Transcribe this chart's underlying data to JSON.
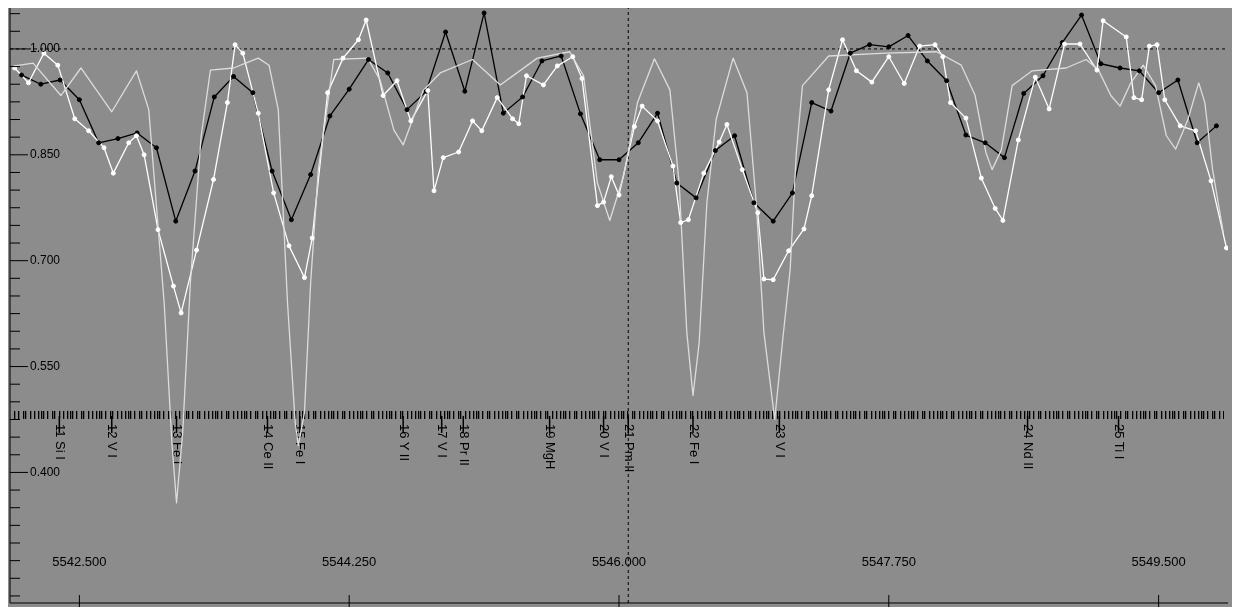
{
  "chart_data": {
    "type": "line",
    "xlim": [
      5542.05,
      5549.95
    ],
    "xticks": [
      {
        "value": 5542.5,
        "label": "5542.500"
      },
      {
        "value": 5544.25,
        "label": "5544.250"
      },
      {
        "value": 5546.0,
        "label": "5546.000"
      },
      {
        "value": 5547.75,
        "label": "5547.750"
      },
      {
        "value": 5549.5,
        "label": "5549.500"
      }
    ],
    "ylim": [
      0.215,
      1.058
    ],
    "yticks": [
      {
        "value": 0.225,
        "label": null
      },
      {
        "value": 0.25,
        "label": null
      },
      {
        "value": 0.275,
        "label": null
      },
      {
        "value": 0.3,
        "label": null
      },
      {
        "value": 0.325,
        "label": null
      },
      {
        "value": 0.35,
        "label": null
      },
      {
        "value": 0.375,
        "label": null
      },
      {
        "value": 0.4,
        "label": "0.400"
      },
      {
        "value": 0.425,
        "label": null
      },
      {
        "value": 0.45,
        "label": null
      },
      {
        "value": 0.475,
        "label": null
      },
      {
        "value": 0.5,
        "label": null
      },
      {
        "value": 0.525,
        "label": null
      },
      {
        "value": 0.55,
        "label": "0.550"
      },
      {
        "value": 0.575,
        "label": null
      },
      {
        "value": 0.6,
        "label": null
      },
      {
        "value": 0.625,
        "label": null
      },
      {
        "value": 0.65,
        "label": null
      },
      {
        "value": 0.675,
        "label": null
      },
      {
        "value": 0.7,
        "label": "0.700"
      },
      {
        "value": 0.725,
        "label": null
      },
      {
        "value": 0.75,
        "label": null
      },
      {
        "value": 0.775,
        "label": null
      },
      {
        "value": 0.8,
        "label": null
      },
      {
        "value": 0.825,
        "label": null
      },
      {
        "value": 0.85,
        "label": "0.850"
      },
      {
        "value": 0.875,
        "label": null
      },
      {
        "value": 0.9,
        "label": null
      },
      {
        "value": 0.925,
        "label": null
      },
      {
        "value": 0.95,
        "label": null
      },
      {
        "value": 0.975,
        "label": null
      },
      {
        "value": 1.0,
        "label": "1.000"
      },
      {
        "value": 1.025,
        "label": null
      },
      {
        "value": 1.05,
        "label": null
      }
    ],
    "marker": "circle",
    "series": [
      {
        "color": "#000000",
        "x": [
          5542.125,
          5542.25,
          5542.375,
          5542.5,
          5542.625,
          5542.75,
          5542.875,
          5543.0,
          5543.125,
          5543.25,
          5543.375,
          5543.5,
          5543.625,
          5543.75,
          5543.875,
          5544.0,
          5544.125,
          5544.25,
          5544.375,
          5544.5,
          5544.625,
          5544.75,
          5544.875,
          5545.0,
          5545.125,
          5545.25,
          5545.375,
          5545.5,
          5545.625,
          5545.75,
          5545.875,
          5546.0,
          5546.125,
          5546.25,
          5546.375,
          5546.5,
          5546.625,
          5546.75,
          5546.875,
          5547.0,
          5547.125,
          5547.25,
          5547.375,
          5547.5,
          5547.625,
          5547.75,
          5547.875,
          5548.0,
          5548.125,
          5548.25,
          5548.375,
          5548.5,
          5548.625,
          5548.75,
          5548.875,
          5549.0,
          5549.125,
          5549.25,
          5549.375,
          5549.5,
          5549.625,
          5549.75,
          5549.875
        ],
        "values": [
          0.963,
          0.95,
          0.956,
          0.928,
          0.867,
          0.873,
          0.881,
          0.86,
          0.756,
          0.827,
          0.932,
          0.961,
          0.938,
          0.827,
          0.758,
          0.822,
          0.905,
          0.943,
          0.985,
          0.966,
          0.914,
          0.94,
          1.024,
          0.94,
          1.051,
          0.909,
          0.932,
          0.983,
          0.99,
          0.908,
          0.843,
          0.843,
          0.867,
          0.909,
          0.81,
          0.789,
          0.856,
          0.877,
          0.782,
          0.756,
          0.796,
          0.924,
          0.912,
          0.994,
          1.006,
          1.003,
          1.019,
          0.983,
          0.955,
          0.878,
          0.867,
          0.846,
          0.937,
          0.962,
          1.009,
          1.048,
          0.979,
          0.973,
          0.969,
          0.938,
          0.956,
          0.867,
          0.891
        ]
      },
      {
        "color": "#ffffff",
        "x": [
          5542.08,
          5542.17,
          5542.27,
          5542.36,
          5542.47,
          5542.56,
          5542.66,
          5542.72,
          5542.82,
          5542.87,
          5542.92,
          5543.01,
          5543.11,
          5543.16,
          5543.26,
          5543.37,
          5543.46,
          5543.51,
          5543.56,
          5543.66,
          5543.76,
          5543.86,
          5543.96,
          5544.01,
          5544.11,
          5544.21,
          5544.31,
          5544.36,
          5544.47,
          5544.56,
          5544.65,
          5544.76,
          5544.8,
          5544.86,
          5544.96,
          5545.05,
          5545.11,
          5545.21,
          5545.31,
          5545.35,
          5545.4,
          5545.51,
          5545.6,
          5545.7,
          5545.76,
          5545.86,
          5545.9,
          5545.95,
          5546.0,
          5546.1,
          5546.15,
          5546.25,
          5546.35,
          5546.4,
          5546.45,
          5546.55,
          5546.65,
          5546.7,
          5546.8,
          5546.9,
          5546.94,
          5547.0,
          5547.1,
          5547.2,
          5547.25,
          5547.36,
          5547.45,
          5547.54,
          5547.64,
          5547.75,
          5547.85,
          5547.95,
          5548.05,
          5548.1,
          5548.15,
          5548.25,
          5548.35,
          5548.44,
          5548.49,
          5548.59,
          5548.7,
          5548.79,
          5548.89,
          5548.99,
          5549.1,
          5549.14,
          5549.29,
          5549.34,
          5549.39,
          5549.44,
          5549.49,
          5549.54,
          5549.64,
          5549.74,
          5549.84,
          5549.94
        ],
        "values": [
          0.973,
          0.952,
          0.994,
          0.977,
          0.901,
          0.884,
          0.86,
          0.824,
          0.867,
          0.877,
          0.85,
          0.744,
          0.664,
          0.626,
          0.715,
          0.815,
          0.924,
          1.006,
          0.994,
          0.909,
          0.796,
          0.721,
          0.676,
          0.732,
          0.938,
          0.987,
          1.013,
          1.041,
          0.934,
          0.955,
          0.898,
          0.941,
          0.799,
          0.846,
          0.854,
          0.898,
          0.884,
          0.931,
          0.901,
          0.894,
          0.962,
          0.949,
          0.976,
          0.989,
          0.958,
          0.778,
          0.783,
          0.819,
          0.793,
          0.89,
          0.919,
          0.898,
          0.834,
          0.754,
          0.758,
          0.824,
          0.868,
          0.893,
          0.829,
          0.768,
          0.674,
          0.673,
          0.714,
          0.745,
          0.792,
          0.942,
          1.013,
          0.969,
          0.953,
          0.989,
          0.951,
          1.004,
          1.006,
          0.989,
          0.924,
          0.902,
          0.817,
          0.774,
          0.757,
          0.871,
          0.96,
          0.915,
          1.007,
          1.007,
          0.97,
          1.04,
          1.017,
          0.931,
          0.928,
          1.004,
          1.006,
          0.928,
          0.891,
          0.884,
          0.813,
          0.718
        ]
      },
      {
        "color": "#dcdcdc",
        "marker": "none",
        "x": [
          5542.08,
          5542.2,
          5542.38,
          5542.51,
          5542.71,
          5542.87,
          5542.95,
          5543.05,
          5543.1,
          5543.13,
          5543.17,
          5543.22,
          5543.29,
          5543.35,
          5543.5,
          5543.66,
          5543.73,
          5543.79,
          5543.85,
          5543.9,
          5543.92,
          5543.96,
          5544.0,
          5544.05,
          5544.15,
          5544.37,
          5544.45,
          5544.54,
          5544.6,
          5544.67,
          5544.73,
          5544.84,
          5545.05,
          5545.23,
          5545.47,
          5545.68,
          5545.77,
          5545.86,
          5545.94,
          5546.03,
          5546.12,
          5546.23,
          5546.33,
          5546.39,
          5546.44,
          5546.48,
          5546.52,
          5546.57,
          5546.63,
          5546.74,
          5546.83,
          5546.89,
          5546.94,
          5547.01,
          5547.06,
          5547.11,
          5547.15,
          5547.19,
          5547.36,
          5547.73,
          5548.06,
          5548.22,
          5548.31,
          5548.38,
          5548.42,
          5548.48,
          5548.55,
          5548.68,
          5548.9,
          5549.03,
          5549.11,
          5549.19,
          5549.25,
          5549.32,
          5549.4,
          5549.48,
          5549.55,
          5549.61,
          5549.69,
          5549.76,
          5549.8,
          5549.85,
          5549.92
        ],
        "values": [
          0.976,
          0.98,
          0.934,
          0.973,
          0.911,
          0.969,
          0.914,
          0.64,
          0.442,
          0.357,
          0.456,
          0.669,
          0.877,
          0.97,
          0.973,
          0.987,
          0.977,
          0.914,
          0.64,
          0.47,
          0.438,
          0.485,
          0.669,
          0.829,
          0.985,
          0.987,
          0.956,
          0.885,
          0.864,
          0.905,
          0.941,
          0.966,
          0.985,
          0.949,
          0.987,
          0.996,
          0.962,
          0.81,
          0.757,
          0.82,
          0.924,
          0.986,
          0.942,
          0.81,
          0.598,
          0.509,
          0.584,
          0.782,
          0.9,
          0.987,
          0.938,
          0.782,
          0.598,
          0.475,
          0.584,
          0.687,
          0.853,
          0.948,
          0.99,
          0.994,
          0.996,
          0.977,
          0.934,
          0.853,
          0.829,
          0.857,
          0.948,
          0.969,
          0.973,
          0.985,
          0.97,
          0.934,
          0.919,
          0.952,
          0.977,
          0.948,
          0.877,
          0.858,
          0.9,
          0.952,
          0.924,
          0.829,
          0.739
        ]
      }
    ],
    "ref_lines": [
      {
        "axis": "y",
        "value": 1.0,
        "color": "#000000",
        "line_style": "dashed"
      },
      {
        "axis": "x",
        "value": 5546.06,
        "color": "#000000",
        "line_style": "dashed"
      },
      {
        "axis": "x",
        "value": 5542.37,
        "label": "11 Si I",
        "color": "#000000"
      },
      {
        "axis": "x",
        "value": 5542.71,
        "label": "12 V I",
        "color": "#000000"
      },
      {
        "axis": "x",
        "value": 5543.13,
        "label": "13 Fe I",
        "color": "#000000"
      },
      {
        "axis": "x",
        "value": 5543.72,
        "label": "14 Ce II",
        "color": "#000000"
      },
      {
        "axis": "x",
        "value": 5543.93,
        "label": "15 Fe I",
        "color": "#000000"
      },
      {
        "axis": "x",
        "value": 5544.6,
        "label": "16 Y II",
        "color": "#000000"
      },
      {
        "axis": "x",
        "value": 5544.85,
        "label": "17 V I",
        "color": "#000000"
      },
      {
        "axis": "x",
        "value": 5544.99,
        "label": "18 Pr II",
        "color": "#000000"
      },
      {
        "axis": "x",
        "value": 5545.55,
        "label": "19 MgH",
        "color": "#000000"
      },
      {
        "axis": "x",
        "value": 5545.9,
        "label": "20 V I",
        "color": "#000000"
      },
      {
        "axis": "x",
        "value": 5546.06,
        "label": "21 Pm II",
        "color": "#000000"
      },
      {
        "axis": "x",
        "value": 5546.48,
        "label": "22 Fe I",
        "color": "#000000"
      },
      {
        "axis": "x",
        "value": 5547.04,
        "label": "23 V I",
        "color": "#000000"
      },
      {
        "axis": "x",
        "value": 5548.65,
        "label": "24 Nd II",
        "color": "#000000"
      },
      {
        "axis": "x",
        "value": 5549.24,
        "label": "25 Ti I",
        "color": "#000000"
      }
    ],
    "grid": false
  }
}
